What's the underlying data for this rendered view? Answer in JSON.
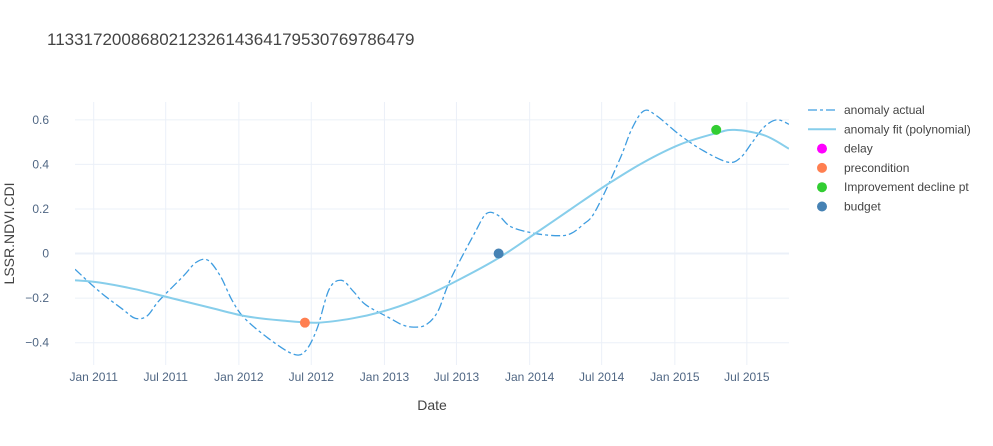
{
  "chart_data": {
    "type": "line",
    "title": "11331720086802123261436417953076978647​9",
    "xlabel": "Date",
    "ylabel": "LSSR.NDVI.CDI",
    "x_range": [
      "2010-11-15",
      "2015-10-15"
    ],
    "ylim": [
      -0.5,
      0.68
    ],
    "x_ticks": [
      {
        "date": "2011-01-01",
        "label": "Jan 2011"
      },
      {
        "date": "2011-07-01",
        "label": "Jul 2011"
      },
      {
        "date": "2012-01-01",
        "label": "Jan 2012"
      },
      {
        "date": "2012-07-01",
        "label": "Jul 2012"
      },
      {
        "date": "2013-01-01",
        "label": "Jan 2013"
      },
      {
        "date": "2013-07-01",
        "label": "Jul 2013"
      },
      {
        "date": "2014-01-01",
        "label": "Jan 2014"
      },
      {
        "date": "2014-07-01",
        "label": "Jul 2014"
      },
      {
        "date": "2015-01-01",
        "label": "Jan 2015"
      },
      {
        "date": "2015-07-01",
        "label": "Jul 2015"
      }
    ],
    "y_ticks": [
      {
        "value": -0.4,
        "label": "−0.4"
      },
      {
        "value": -0.2,
        "label": "−0.2"
      },
      {
        "value": 0,
        "label": "0"
      },
      {
        "value": 0.2,
        "label": "0.2"
      },
      {
        "value": 0.4,
        "label": "0.4"
      },
      {
        "value": 0.6,
        "label": "0.6"
      }
    ],
    "grid": true,
    "legend_position": "right",
    "series": [
      {
        "name": "anomaly actual",
        "kind": "line",
        "dash": "dashdot",
        "color": "#3f9de0",
        "points": [
          [
            "2010-11-15",
            -0.07
          ],
          [
            "2011-01-15",
            -0.17
          ],
          [
            "2011-03-15",
            -0.25
          ],
          [
            "2011-04-15",
            -0.29
          ],
          [
            "2011-05-15",
            -0.28
          ],
          [
            "2011-06-15",
            -0.21
          ],
          [
            "2011-08-15",
            -0.1
          ],
          [
            "2011-09-15",
            -0.04
          ],
          [
            "2011-10-15",
            -0.03
          ],
          [
            "2011-11-15",
            -0.1
          ],
          [
            "2011-12-15",
            -0.21
          ],
          [
            "2012-01-15",
            -0.29
          ],
          [
            "2012-03-15",
            -0.38
          ],
          [
            "2012-05-15",
            -0.45
          ],
          [
            "2012-06-15",
            -0.44
          ],
          [
            "2012-07-15",
            -0.34
          ],
          [
            "2012-08-15",
            -0.16
          ],
          [
            "2012-09-15",
            -0.12
          ],
          [
            "2012-10-15",
            -0.17
          ],
          [
            "2012-11-15",
            -0.23
          ],
          [
            "2013-01-15",
            -0.29
          ],
          [
            "2013-02-15",
            -0.32
          ],
          [
            "2013-03-15",
            -0.33
          ],
          [
            "2013-04-15",
            -0.32
          ],
          [
            "2013-05-15",
            -0.26
          ],
          [
            "2013-06-15",
            -0.12
          ],
          [
            "2013-08-15",
            0.09
          ],
          [
            "2013-09-15",
            0.18
          ],
          [
            "2013-10-15",
            0.17
          ],
          [
            "2013-11-15",
            0.12
          ],
          [
            "2014-01-15",
            0.09
          ],
          [
            "2014-03-15",
            0.08
          ],
          [
            "2014-04-15",
            0.09
          ],
          [
            "2014-05-15",
            0.13
          ],
          [
            "2014-06-15",
            0.19
          ],
          [
            "2014-08-15",
            0.42
          ],
          [
            "2014-09-15",
            0.56
          ],
          [
            "2014-10-15",
            0.64
          ],
          [
            "2014-11-15",
            0.62
          ],
          [
            "2015-01-15",
            0.53
          ],
          [
            "2015-03-15",
            0.46
          ],
          [
            "2015-05-15",
            0.41
          ],
          [
            "2015-06-15",
            0.43
          ],
          [
            "2015-07-15",
            0.5
          ],
          [
            "2015-08-15",
            0.57
          ],
          [
            "2015-09-15",
            0.6
          ],
          [
            "2015-10-15",
            0.58
          ]
        ]
      },
      {
        "name": "anomaly fit (polynomial)",
        "kind": "line",
        "dash": "solid",
        "color": "#87ceeb",
        "points": [
          [
            "2010-11-15",
            -0.12
          ],
          [
            "2011-01-15",
            -0.13
          ],
          [
            "2011-04-15",
            -0.16
          ],
          [
            "2011-07-15",
            -0.2
          ],
          [
            "2011-10-15",
            -0.24
          ],
          [
            "2012-01-15",
            -0.28
          ],
          [
            "2012-04-15",
            -0.3
          ],
          [
            "2012-07-15",
            -0.31
          ],
          [
            "2012-10-15",
            -0.29
          ],
          [
            "2013-01-15",
            -0.25
          ],
          [
            "2013-04-15",
            -0.19
          ],
          [
            "2013-07-15",
            -0.11
          ],
          [
            "2013-10-15",
            -0.02
          ],
          [
            "2014-01-15",
            0.09
          ],
          [
            "2014-04-15",
            0.2
          ],
          [
            "2014-07-15",
            0.31
          ],
          [
            "2014-10-15",
            0.41
          ],
          [
            "2015-01-15",
            0.49
          ],
          [
            "2015-04-15",
            0.54
          ],
          [
            "2015-06-01",
            0.555
          ],
          [
            "2015-08-15",
            0.53
          ],
          [
            "2015-10-15",
            0.47
          ]
        ]
      },
      {
        "name": "delay",
        "kind": "marker",
        "color": "#ff00ff",
        "points": []
      },
      {
        "name": "precondition",
        "kind": "marker",
        "color": "#ff7f50",
        "points": [
          [
            "2012-06-15",
            -0.31
          ]
        ]
      },
      {
        "name": "Improvement decline pt",
        "kind": "marker",
        "color": "#32cd32",
        "points": [
          [
            "2015-04-15",
            0.555
          ]
        ]
      },
      {
        "name": "budget",
        "kind": "marker",
        "color": "#4682b4",
        "points": [
          [
            "2013-10-15",
            0.0
          ]
        ]
      }
    ]
  }
}
